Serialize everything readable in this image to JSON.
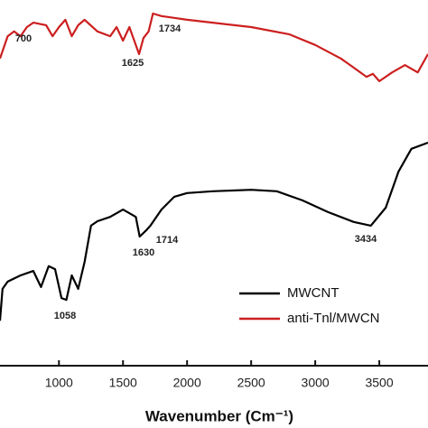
{
  "chart_data": {
    "type": "line",
    "x_label": "Wavenumber (Cm⁻¹)",
    "xlim": [
      540,
      3880
    ],
    "ylim": [
      0,
      100
    ],
    "xticks": [
      1000,
      1500,
      2000,
      2500,
      3000,
      3500
    ],
    "series": [
      {
        "name": "MWCNT",
        "color": "#000000",
        "x": [
          540,
          560,
          600,
          700,
          800,
          860,
          920,
          970,
          1020,
          1058,
          1100,
          1150,
          1200,
          1250,
          1300,
          1400,
          1500,
          1600,
          1630,
          1680,
          1714,
          1800,
          1900,
          2000,
          2200,
          2500,
          2700,
          2900,
          3100,
          3300,
          3434,
          3550,
          3650,
          3750,
          3880
        ],
        "values": [
          12.3,
          21,
          23,
          24.7,
          25.9,
          21.5,
          27.2,
          26.4,
          18.5,
          18,
          24.7,
          21,
          28.4,
          38.3,
          39.5,
          40.7,
          42.7,
          40.7,
          35.3,
          37,
          38.3,
          42.7,
          46.2,
          47.2,
          47.7,
          48.1,
          47.7,
          45.2,
          42,
          39.3,
          38.3,
          43.2,
          53.1,
          59.3,
          61
        ]
      },
      {
        "name": "anti-Tnl/MWCN",
        "color": "#cc1f1f",
        "x": [
          540,
          600,
          650,
          700,
          750,
          800,
          900,
          950,
          1000,
          1050,
          1100,
          1150,
          1200,
          1300,
          1400,
          1450,
          1500,
          1550,
          1625,
          1660,
          1700,
          1734,
          1800,
          1900,
          2000,
          2200,
          2500,
          2800,
          3000,
          3200,
          3300,
          3400,
          3450,
          3500,
          3600,
          3700,
          3800,
          3880
        ],
        "values": [
          84,
          90.1,
          91.4,
          90.1,
          92.6,
          93.8,
          93.1,
          90.1,
          92.6,
          94.6,
          90.1,
          93.1,
          94.6,
          91.4,
          90.1,
          92.6,
          88.9,
          92.6,
          85.2,
          89.6,
          91.4,
          96.3,
          95.6,
          95.1,
          94.6,
          93.8,
          92.6,
          90.6,
          87.7,
          84,
          81.5,
          79,
          79.8,
          77.8,
          80.2,
          82.2,
          80.2,
          85.2
        ]
      }
    ],
    "annotations": [
      "700",
      "1625",
      "1734",
      "1058",
      "1630",
      "1714",
      "3434"
    ]
  }
}
